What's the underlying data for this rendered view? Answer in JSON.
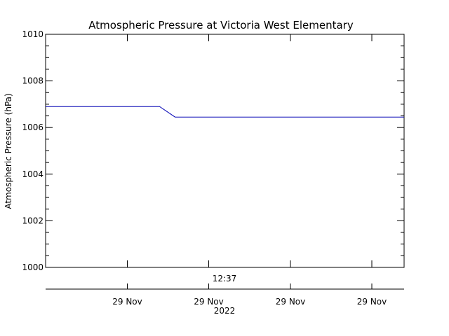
{
  "chart_data": {
    "type": "line",
    "title": "Atmospheric Pressure at Victoria West Elementary",
    "ylabel": "Atmospheric Pressure (hPa)",
    "ylim": [
      1000,
      1010
    ],
    "yticks": [
      1000,
      1002,
      1004,
      1006,
      1008,
      1010
    ],
    "ytick_labels": [
      "1000",
      "1002",
      "1004",
      "1006",
      "1008",
      "1010"
    ],
    "y_minor_step": 0.5,
    "xlim": [
      0,
      100
    ],
    "time_label": "12:37",
    "xticks": [
      22.8,
      45.5,
      68.3,
      91.0
    ],
    "xtick_labels": [
      "29 Nov",
      "29 Nov",
      "29 Nov",
      "29 Nov"
    ],
    "year_label": "2022",
    "grid": false,
    "colors": {
      "series": "#0000b4",
      "axes": "#000000",
      "background": "#ffffff"
    },
    "series": [
      {
        "x": [
          0,
          31.8,
          36.1,
          100
        ],
        "y": [
          1006.9,
          1006.9,
          1006.45,
          1006.45
        ]
      }
    ]
  }
}
